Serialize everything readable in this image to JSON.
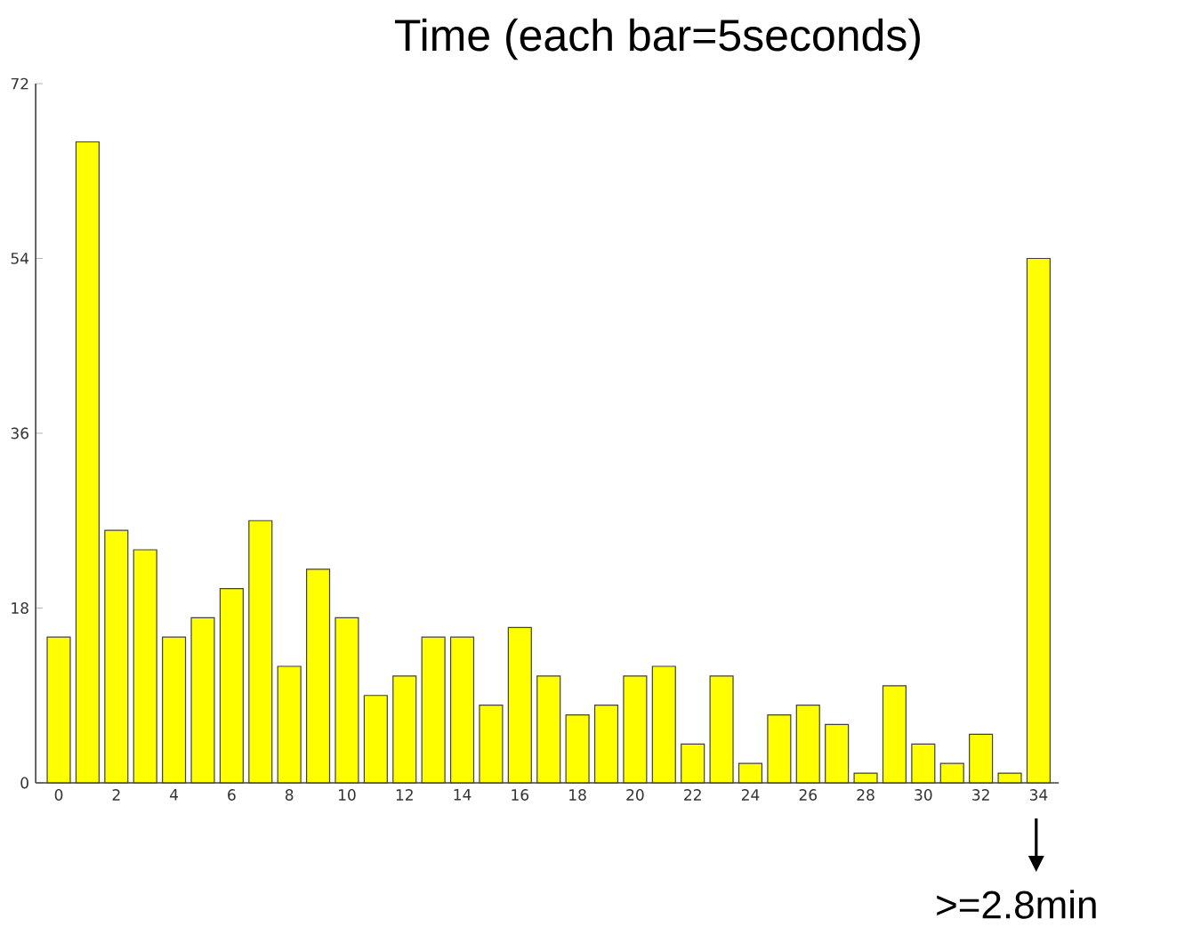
{
  "chart_data": {
    "type": "bar",
    "title": "Time (each bar=5seconds)",
    "x": [
      0,
      1,
      2,
      3,
      4,
      5,
      6,
      7,
      8,
      9,
      10,
      11,
      12,
      13,
      14,
      15,
      16,
      17,
      18,
      19,
      20,
      21,
      22,
      23,
      24,
      25,
      26,
      27,
      28,
      29,
      30,
      31,
      32,
      33,
      34
    ],
    "values": [
      15,
      66,
      26,
      24,
      15,
      17,
      20,
      27,
      12,
      22,
      17,
      9,
      11,
      15,
      15,
      8,
      16,
      11,
      7,
      8,
      11,
      12,
      4,
      11,
      2,
      7,
      8,
      6,
      1,
      10,
      4,
      2,
      5,
      1,
      54
    ],
    "color": "#ffff00",
    "xlim": [
      -0.8,
      34.7
    ],
    "xticks": [
      0,
      {
        "value": 1,
        "label": null
      },
      2,
      {
        "value": 3,
        "label": null
      },
      4,
      {
        "value": 5,
        "label": null
      },
      6,
      {
        "value": 7,
        "label": null
      },
      8,
      {
        "value": 9,
        "label": null
      },
      10,
      {
        "value": 11,
        "label": null
      },
      12,
      {
        "value": 13,
        "label": null
      },
      14,
      {
        "value": 15,
        "label": null
      },
      16,
      {
        "value": 17,
        "label": null
      },
      18,
      {
        "value": 19,
        "label": null
      },
      20,
      {
        "value": 21,
        "label": null
      },
      22,
      {
        "value": 23,
        "label": null
      },
      24,
      {
        "value": 25,
        "label": null
      },
      26,
      {
        "value": 27,
        "label": null
      },
      28,
      {
        "value": 29,
        "label": null
      },
      30,
      {
        "value": 31,
        "label": null
      },
      32,
      {
        "value": 33,
        "label": null
      },
      34
    ],
    "ylim": [
      0,
      72
    ],
    "yticks": [
      0,
      18,
      36,
      54,
      72
    ],
    "annotations": [
      ">=2.8min"
    ]
  }
}
